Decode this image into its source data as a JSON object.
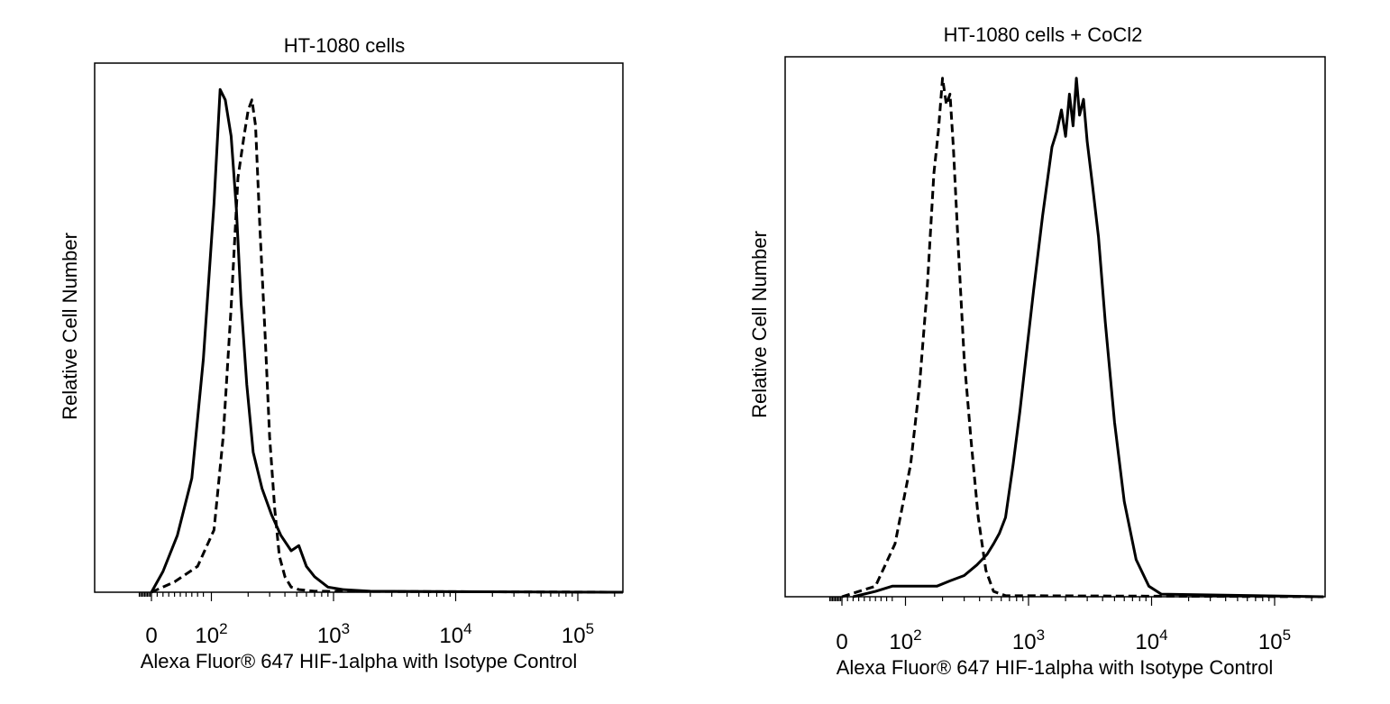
{
  "chart_data": [
    {
      "type": "line",
      "title": "HT-1080 cells",
      "xlabel": "Alexa Fluor® 647 HIF-1alpha with Isotype Control",
      "ylabel": "Relative Cell Number",
      "x_scale": "biexponential",
      "xlim": [
        -80,
        250000
      ],
      "ylim": [
        0,
        1.0
      ],
      "xticks": [
        {
          "value": 0,
          "base": "0",
          "exp": ""
        },
        {
          "value": 100,
          "base": "10",
          "exp": "2"
        },
        {
          "value": 1000,
          "base": "10",
          "exp": "3"
        },
        {
          "value": 10000,
          "base": "10",
          "exp": "4"
        },
        {
          "value": 100000,
          "base": "10",
          "exp": "5"
        }
      ],
      "series": [
        {
          "name": "HIF-1alpha",
          "style": "solid",
          "x": [
            0,
            20,
            45,
            70,
            90,
            105,
            118,
            130,
            145,
            160,
            175,
            195,
            220,
            260,
            310,
            370,
            450,
            520,
            600,
            700,
            900,
            1200,
            2000,
            10000,
            250000
          ],
          "y": [
            0,
            0.04,
            0.11,
            0.22,
            0.45,
            0.75,
            0.97,
            0.95,
            0.88,
            0.74,
            0.56,
            0.4,
            0.27,
            0.2,
            0.15,
            0.11,
            0.08,
            0.09,
            0.05,
            0.03,
            0.01,
            0.005,
            0.002,
            0.001,
            0
          ]
        },
        {
          "name": "Isotype Control",
          "style": "dashed",
          "x": [
            0,
            40,
            80,
            105,
            125,
            145,
            165,
            185,
            200,
            215,
            230,
            250,
            275,
            300,
            330,
            360,
            400,
            450,
            520,
            700,
            250000
          ],
          "y": [
            0,
            0.02,
            0.05,
            0.12,
            0.3,
            0.55,
            0.8,
            0.88,
            0.93,
            0.95,
            0.9,
            0.7,
            0.5,
            0.3,
            0.16,
            0.07,
            0.03,
            0.01,
            0.005,
            0.002,
            0
          ]
        }
      ]
    },
    {
      "type": "line",
      "title": "HT-1080 cells + CoCl2",
      "xlabel": "Alexa Fluor® 647 HIF-1alpha with Isotype Control",
      "ylabel": "Relative Cell Number",
      "x_scale": "biexponential",
      "xlim": [
        -80,
        250000
      ],
      "ylim": [
        0,
        1.0
      ],
      "xticks": [
        {
          "value": 0,
          "base": "0",
          "exp": ""
        },
        {
          "value": 100,
          "base": "10",
          "exp": "2"
        },
        {
          "value": 1000,
          "base": "10",
          "exp": "3"
        },
        {
          "value": 10000,
          "base": "10",
          "exp": "4"
        },
        {
          "value": 100000,
          "base": "10",
          "exp": "5"
        }
      ],
      "series": [
        {
          "name": "HIF-1alpha",
          "style": "solid",
          "x": [
            20,
            60,
            90,
            110,
            140,
            180,
            230,
            300,
            380,
            460,
            520,
            580,
            650,
            750,
            850,
            950,
            1100,
            1300,
            1550,
            1700,
            1850,
            2000,
            2150,
            2300,
            2450,
            2600,
            2800,
            3000,
            3300,
            3700,
            4200,
            5000,
            6000,
            7500,
            9500,
            12000,
            250000
          ],
          "y": [
            0,
            0.01,
            0.02,
            0.02,
            0.02,
            0.02,
            0.03,
            0.04,
            0.06,
            0.08,
            0.1,
            0.12,
            0.15,
            0.25,
            0.35,
            0.45,
            0.58,
            0.72,
            0.85,
            0.88,
            0.92,
            0.87,
            0.95,
            0.89,
            0.98,
            0.91,
            0.94,
            0.86,
            0.78,
            0.68,
            0.52,
            0.33,
            0.18,
            0.07,
            0.02,
            0.005,
            0
          ]
        },
        {
          "name": "Isotype Control",
          "style": "dashed",
          "x": [
            0,
            60,
            95,
            110,
            130,
            150,
            170,
            185,
            200,
            215,
            230,
            245,
            270,
            300,
            340,
            390,
            450,
            520,
            650,
            250000
          ],
          "y": [
            0,
            0.02,
            0.1,
            0.25,
            0.4,
            0.58,
            0.8,
            0.88,
            0.98,
            0.93,
            0.95,
            0.85,
            0.65,
            0.45,
            0.3,
            0.15,
            0.05,
            0.01,
            0.002,
            0
          ]
        }
      ]
    }
  ]
}
